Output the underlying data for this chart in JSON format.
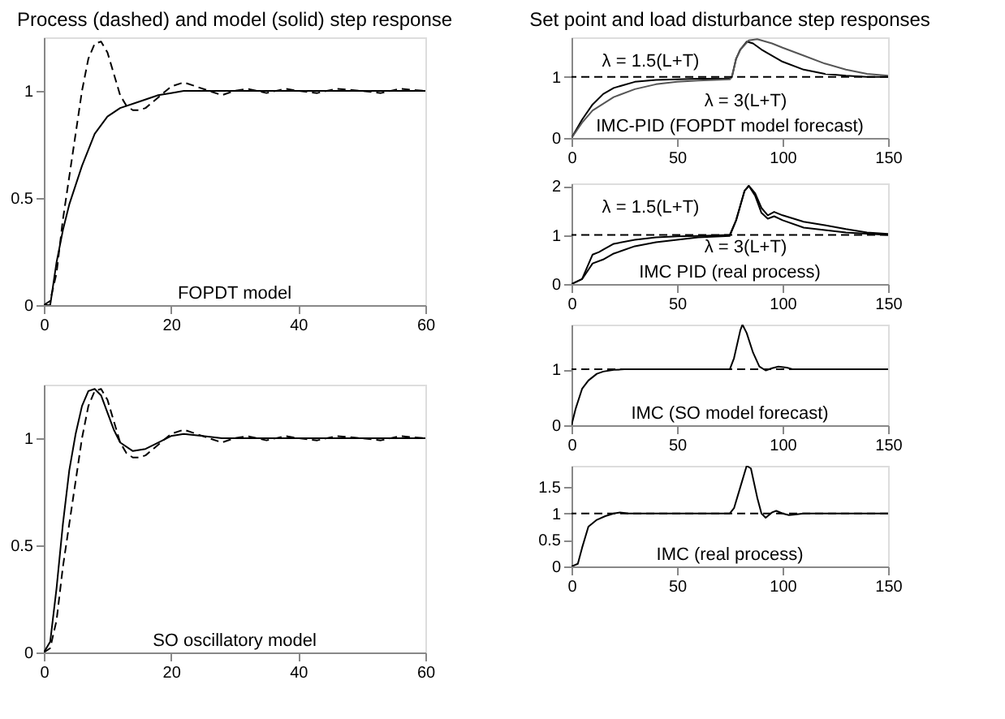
{
  "chart_data": [
    {
      "type": "line",
      "title": "Process (dashed) and model (solid) step response",
      "xlim": [
        0,
        60
      ],
      "ylim": [
        0,
        1.25
      ],
      "xticks": [
        0,
        20,
        40,
        60
      ],
      "yticks": [
        0,
        0.5,
        1
      ],
      "annotations": [
        "FOPDT model"
      ],
      "series": [
        {
          "color": "#000000",
          "line_style": "dashed",
          "x": [
            0,
            1,
            2,
            3,
            4,
            5,
            6,
            7,
            8,
            9,
            10,
            11,
            12,
            13,
            14,
            15,
            16,
            18,
            20,
            22,
            24,
            26,
            28,
            30,
            32,
            35,
            38,
            40,
            43,
            46,
            50,
            53,
            56,
            60
          ],
          "values": [
            0,
            0.02,
            0.15,
            0.4,
            0.6,
            0.8,
            1.0,
            1.15,
            1.22,
            1.23,
            1.18,
            1.08,
            0.98,
            0.93,
            0.91,
            0.91,
            0.92,
            0.97,
            1.02,
            1.04,
            1.02,
            1.0,
            0.98,
            1.0,
            1.01,
            0.99,
            1.01,
            1.0,
            0.99,
            1.01,
            1.0,
            0.99,
            1.01,
            1.0
          ]
        },
        {
          "color": "#000000",
          "line_style": "solid",
          "x": [
            0,
            1,
            2,
            3,
            4,
            6,
            8,
            10,
            12,
            15,
            18,
            20,
            22,
            25,
            30,
            40,
            50,
            60
          ],
          "values": [
            0,
            0,
            0.2,
            0.35,
            0.47,
            0.65,
            0.8,
            0.88,
            0.92,
            0.95,
            0.98,
            0.99,
            1.0,
            1,
            1,
            1,
            1,
            1
          ]
        }
      ]
    },
    {
      "type": "line",
      "xlim": [
        0,
        60
      ],
      "ylim": [
        0,
        1.25
      ],
      "xticks": [
        0,
        20,
        40,
        60
      ],
      "yticks": [
        0,
        0.5,
        1
      ],
      "annotations": [
        "SO oscillatory model"
      ],
      "series": [
        {
          "color": "#000000",
          "line_style": "dashed",
          "x": [
            0,
            1,
            2,
            3,
            4,
            5,
            6,
            7,
            8,
            9,
            10,
            11,
            12,
            13,
            14,
            15,
            16,
            18,
            20,
            22,
            24,
            26,
            28,
            30,
            32,
            35,
            38,
            40,
            43,
            46,
            50,
            53,
            56,
            60
          ],
          "values": [
            0,
            0.02,
            0.15,
            0.4,
            0.6,
            0.8,
            1.0,
            1.15,
            1.22,
            1.23,
            1.18,
            1.08,
            0.98,
            0.93,
            0.91,
            0.91,
            0.92,
            0.97,
            1.02,
            1.04,
            1.02,
            1.0,
            0.98,
            1.0,
            1.01,
            0.99,
            1.01,
            1.0,
            0.99,
            1.01,
            1.0,
            0.99,
            1.01,
            1.0
          ]
        },
        {
          "color": "#000000",
          "line_style": "solid",
          "x": [
            0,
            1,
            2,
            3,
            4,
            5,
            6,
            7,
            8,
            9,
            10,
            11,
            12,
            14,
            16,
            18,
            20,
            22,
            25,
            28,
            30,
            40,
            60
          ],
          "values": [
            0,
            0.05,
            0.3,
            0.6,
            0.85,
            1.02,
            1.15,
            1.22,
            1.23,
            1.2,
            1.12,
            1.04,
            0.98,
            0.94,
            0.95,
            0.98,
            1.01,
            1.02,
            1.01,
            1.0,
            1.0,
            1,
            1
          ]
        }
      ]
    },
    {
      "type": "line",
      "title": "Set point and load disturbance step responses",
      "xlim": [
        0,
        150
      ],
      "ylim": [
        0,
        1.65
      ],
      "xticks": [
        0,
        50,
        100,
        150
      ],
      "yticks": [
        0,
        1
      ],
      "ref_lines": [
        {
          "axis": "y",
          "value": 1,
          "line_style": "dashed",
          "color": "#000000"
        }
      ],
      "annotations": [
        "λ = 1.5(L+T)",
        "λ = 3(L+T)",
        "IMC-PID (FOPDT model forecast)"
      ],
      "series": [
        {
          "color": "#000000",
          "line_style": "solid",
          "x": [
            0,
            5,
            10,
            15,
            20,
            30,
            40,
            50,
            60,
            75,
            76,
            78,
            80,
            83,
            86,
            90,
            100,
            110,
            120,
            130,
            140,
            150
          ],
          "values": [
            0,
            0.3,
            0.55,
            0.72,
            0.82,
            0.92,
            0.95,
            0.96,
            0.97,
            0.97,
            1.0,
            1.3,
            1.45,
            1.58,
            1.55,
            1.45,
            1.25,
            1.12,
            1.05,
            1.02,
            1.0,
            1.0
          ]
        },
        {
          "color": "#555555",
          "line_style": "solid",
          "x": [
            0,
            5,
            10,
            20,
            30,
            40,
            50,
            60,
            75,
            76,
            78,
            80,
            84,
            88,
            95,
            100,
            110,
            120,
            130,
            140,
            150
          ],
          "values": [
            0,
            0.25,
            0.45,
            0.67,
            0.8,
            0.88,
            0.92,
            0.94,
            0.96,
            1.0,
            1.3,
            1.45,
            1.6,
            1.62,
            1.55,
            1.48,
            1.35,
            1.22,
            1.12,
            1.05,
            1.02
          ]
        }
      ]
    },
    {
      "type": "line",
      "xlim": [
        0,
        150
      ],
      "ylim": [
        0,
        2.05
      ],
      "xticks": [
        0,
        50,
        100,
        150
      ],
      "yticks": [
        0,
        1,
        2
      ],
      "ref_lines": [
        {
          "axis": "y",
          "value": 1,
          "line_style": "dashed",
          "color": "#000000"
        }
      ],
      "annotations": [
        "λ = 1.5(L+T)",
        "λ = 3(L+T)",
        "IMC PID (real process)"
      ],
      "series": [
        {
          "color": "#000000",
          "line_style": "solid",
          "x": [
            0,
            5,
            10,
            13,
            15,
            20,
            30,
            40,
            50,
            60,
            75,
            78,
            82,
            84,
            87,
            90,
            93,
            96,
            100,
            110,
            120,
            130,
            150
          ],
          "values": [
            0,
            0.1,
            0.6,
            0.65,
            0.7,
            0.82,
            0.9,
            0.95,
            0.97,
            0.98,
            1.0,
            1.3,
            1.9,
            2.0,
            1.8,
            1.45,
            1.33,
            1.38,
            1.3,
            1.15,
            1.1,
            1.05,
            1.0
          ]
        },
        {
          "color": "#000000",
          "line_style": "solid",
          "x": [
            0,
            5,
            10,
            15,
            20,
            30,
            40,
            50,
            60,
            75,
            78,
            82,
            84,
            87,
            90,
            93,
            96,
            100,
            110,
            120,
            130,
            140,
            150
          ],
          "values": [
            0,
            0.1,
            0.42,
            0.5,
            0.62,
            0.77,
            0.85,
            0.9,
            0.95,
            0.98,
            1.3,
            1.9,
            2.0,
            1.85,
            1.55,
            1.4,
            1.47,
            1.4,
            1.27,
            1.2,
            1.12,
            1.05,
            1.02
          ]
        }
      ]
    },
    {
      "type": "line",
      "xlim": [
        0,
        150
      ],
      "ylim": [
        0,
        1.8
      ],
      "xticks": [
        0,
        50,
        100,
        150
      ],
      "yticks": [
        0,
        1
      ],
      "ref_lines": [
        {
          "axis": "y",
          "value": 1,
          "line_style": "dashed",
          "color": "#000000"
        }
      ],
      "annotations": [
        "IMC (SO model forecast)"
      ],
      "series": [
        {
          "color": "#000000",
          "line_style": "solid",
          "x": [
            0,
            2,
            5,
            8,
            12,
            15,
            20,
            25,
            75,
            77,
            80,
            81,
            83,
            86,
            89,
            92,
            95,
            98,
            102,
            105,
            150
          ],
          "values": [
            0,
            0.3,
            0.65,
            0.8,
            0.92,
            0.96,
            0.99,
            1,
            1,
            1.2,
            1.7,
            1.8,
            1.65,
            1.3,
            1.05,
            0.98,
            1.02,
            1.05,
            1.03,
            1.0,
            1
          ]
        }
      ]
    },
    {
      "type": "line",
      "xlim": [
        0,
        150
      ],
      "ylim": [
        0,
        1.9
      ],
      "xticks": [
        0,
        50,
        100,
        150
      ],
      "yticks": [
        0,
        0.5,
        1,
        1.5
      ],
      "ref_lines": [
        {
          "axis": "y",
          "value": 1,
          "line_style": "dashed",
          "color": "#000000"
        }
      ],
      "annotations": [
        "IMC (real process)"
      ],
      "series": [
        {
          "color": "#000000",
          "line_style": "solid",
          "x": [
            0,
            3,
            5,
            8,
            12,
            16,
            20,
            23,
            27,
            40,
            60,
            75,
            77,
            80,
            83,
            85,
            88,
            90,
            92,
            95,
            97,
            100,
            103,
            106,
            110,
            150
          ],
          "values": [
            0,
            0.05,
            0.35,
            0.75,
            0.88,
            0.95,
            1.0,
            1.02,
            1.0,
            1.0,
            1.0,
            1.0,
            1.1,
            1.5,
            1.9,
            1.85,
            1.3,
            1.0,
            0.92,
            1.02,
            1.05,
            1.0,
            0.97,
            0.98,
            1.0,
            1.0
          ]
        }
      ]
    }
  ]
}
